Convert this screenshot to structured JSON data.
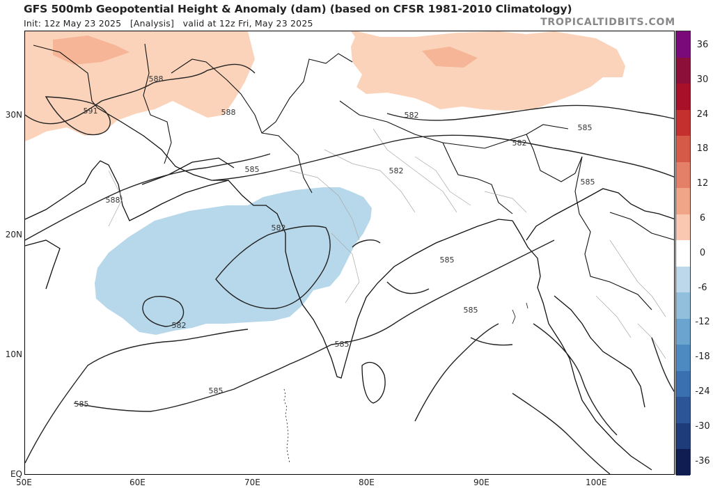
{
  "header": {
    "title": "GFS 500mb Geopotential Height & Anomaly (dam) (based on CFSR 1981-2010 Climatology)",
    "subtitle": "Init: 12z May 23 2025   [Analysis]   valid at 12z Fri, May 23 2025",
    "credit": "TROPICALTIDBITS.COM"
  },
  "axes": {
    "lat_labels": [
      "30N",
      "20N",
      "10N",
      "EQ"
    ],
    "lon_labels": [
      "50E",
      "60E",
      "70E",
      "80E",
      "90E",
      "100E"
    ]
  },
  "colorbar": {
    "ticks": [
      "36",
      "30",
      "24",
      "18",
      "12",
      "6",
      "0",
      "-6",
      "-12",
      "-18",
      "-24",
      "-30",
      "-36"
    ],
    "colors": [
      "#7a0a7a",
      "#8c0f3a",
      "#a8102a",
      "#c4302e",
      "#d65a48",
      "#e58068",
      "#f0a488",
      "#fac8b0",
      "#ffffff",
      "#bcd8ea",
      "#92bfdc",
      "#6aa4cf",
      "#4e8ac2",
      "#3a6fb0",
      "#2c5597",
      "#1f3c7a",
      "#0f1d52"
    ]
  },
  "map": {
    "contour_labels": [
      "588",
      "591",
      "588",
      "585",
      "588",
      "582",
      "582",
      "582",
      "582",
      "582",
      "585",
      "585",
      "585",
      "585",
      "585",
      "585",
      "585"
    ],
    "colors": {
      "positive_anomaly": "#fbd3bb",
      "positive_anomaly_strong": "#f5b596",
      "negative_anomaly": "#b7d8ea",
      "contour": "#222222",
      "border": "#111111",
      "admin": "#a8a8a8"
    }
  }
}
